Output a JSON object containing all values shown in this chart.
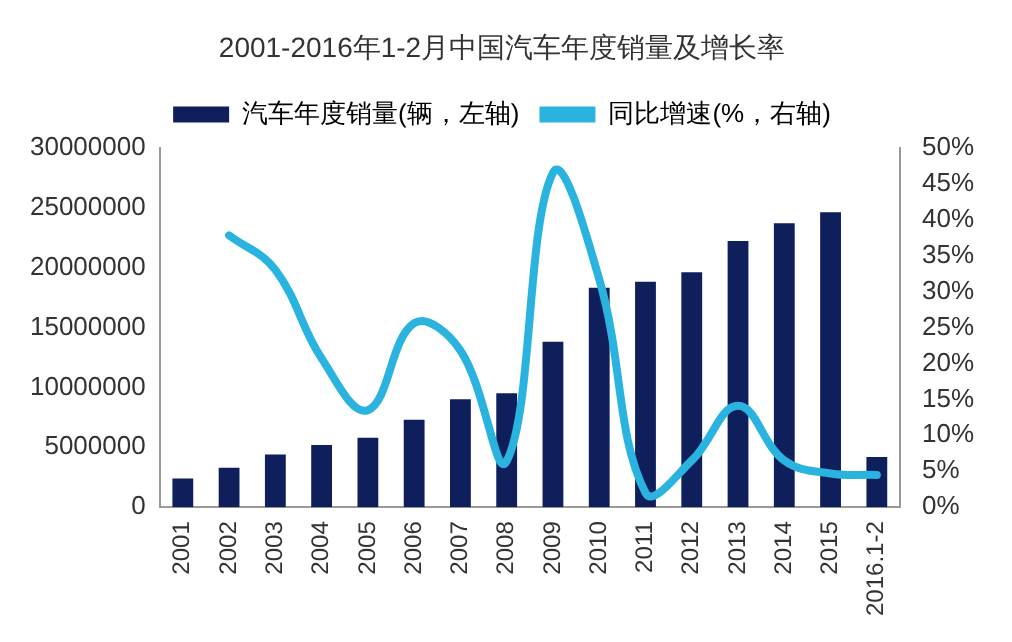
{
  "chart_data": {
    "type": "bar",
    "title": "2001-2016年1-2月中国汽车年度销量及增长率",
    "categories": [
      "2001",
      "2002",
      "2003",
      "2004",
      "2005",
      "2006",
      "2007",
      "2008",
      "2009",
      "2010",
      "2011",
      "2012",
      "2013",
      "2014",
      "2015",
      "2016.1-2"
    ],
    "series": [
      {
        "name": "汽车年度销量(辆，左轴)",
        "color": "#0f1f5c",
        "values": [
          2400000,
          3300000,
          4400000,
          5200000,
          5800000,
          7300000,
          9000000,
          9500000,
          13800000,
          18300000,
          18800000,
          19600000,
          22200000,
          23700000,
          24600000,
          4200000
        ]
      },
      {
        "name": "同比增速(%，右轴)",
        "type": "line",
        "axis": "y2",
        "color": "#2bb3e0",
        "values": [
          null,
          37.8,
          33,
          20.7,
          13.5,
          25.6,
          21.8,
          6.4,
          46.5,
          31.7,
          2,
          6.5,
          14.1,
          6.5,
          4.7,
          4.5
        ]
      }
    ],
    "ylim": [
      0,
      30000000
    ],
    "yticks": [
      0,
      5000000,
      10000000,
      15000000,
      20000000,
      25000000,
      30000000
    ],
    "y2lim": [
      0,
      50
    ],
    "y2ticks": [
      {
        "value": 0,
        "label": "0%"
      },
      {
        "value": 5,
        "label": "5%"
      },
      {
        "value": 10,
        "label": "10%"
      },
      {
        "value": 15,
        "label": "15%"
      },
      {
        "value": 20,
        "label": "20%"
      },
      {
        "value": 25,
        "label": "25%"
      },
      {
        "value": 30,
        "label": "30%"
      },
      {
        "value": 35,
        "label": "35%"
      },
      {
        "value": 40,
        "label": "40%"
      },
      {
        "value": 45,
        "label": "45%"
      },
      {
        "value": 50,
        "label": "50%"
      }
    ],
    "legend": "top",
    "grid": false,
    "marker": "none"
  }
}
